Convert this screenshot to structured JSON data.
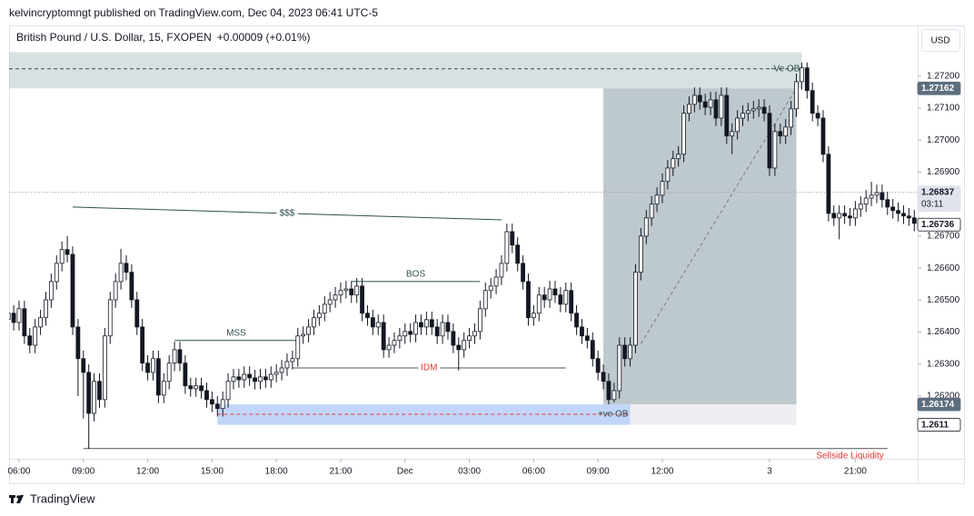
{
  "header": {
    "publisher": "kelvincryptomngt published on TradingView.com, Dec 04, 2023 06:41 UTC-5",
    "currency": "USD"
  },
  "footer": {
    "brand": "TradingView"
  },
  "chart_data": {
    "type": "candlestick",
    "title": "British Pound / U.S. Dollar, 15, FXOPEN",
    "change": "+0.00009 (+0.01%)",
    "color_up": "#ffffff",
    "color_down": "#131722",
    "color_outline": "#131722",
    "xlim": [
      0.14,
      169.63
    ],
    "ylim": [
      1.26004,
      1.27353
    ],
    "xticks": [
      {
        "value": 2,
        "label": "06:00"
      },
      {
        "value": 14,
        "label": "09:00"
      },
      {
        "value": 26,
        "label": "12:00"
      },
      {
        "value": 38,
        "label": "15:00"
      },
      {
        "value": 50,
        "label": "18:00"
      },
      {
        "value": 62,
        "label": "21:00"
      },
      {
        "value": 74,
        "label": "Dec"
      },
      {
        "value": 86,
        "label": "03:00"
      },
      {
        "value": 98,
        "label": "06:00"
      },
      {
        "value": 110,
        "label": "09:00"
      },
      {
        "value": 122,
        "label": "12:00"
      },
      {
        "value": 142,
        "label": "3"
      },
      {
        "value": 158,
        "label": "21:00"
      }
    ],
    "yticks": [
      {
        "value": 1.262,
        "label": "1.26200"
      },
      {
        "value": 1.263,
        "label": "1.26300"
      },
      {
        "value": 1.264,
        "label": "1.26400"
      },
      {
        "value": 1.265,
        "label": "1.26500"
      },
      {
        "value": 1.266,
        "label": "1.26600"
      },
      {
        "value": 1.267,
        "label": "1.26700"
      },
      {
        "value": 1.269,
        "label": "1.26900"
      },
      {
        "value": 1.27,
        "label": "1.27000"
      },
      {
        "value": 1.271,
        "label": "1.27100"
      },
      {
        "value": 1.272,
        "label": "1.27200"
      }
    ],
    "price_tags": [
      {
        "value": 1.27162,
        "color": "#5d6e7e",
        "text_color": "#ffffff"
      },
      {
        "value": 1.26837,
        "countdown": "03:11",
        "color": "#e0e3eb",
        "text_color": "#131722",
        "line": "dotted"
      },
      {
        "value": 1.26736,
        "color": "#ffffff",
        "text_color": "#131722"
      },
      {
        "value": 1.26174,
        "color": "#5d6e7e",
        "text_color": "#ffffff"
      },
      {
        "value": 1.2611,
        "color": "#ffffff",
        "text_color": "#131722"
      }
    ],
    "zones": [
      {
        "x": [
          0.14,
          148
        ],
        "y": [
          1.27162,
          1.27275
        ],
        "color": "rgba(178,196,198,0.5)"
      },
      {
        "x": [
          111,
          147
        ],
        "y": [
          1.26174,
          1.27162
        ],
        "color": "rgba(125,148,158,0.5)"
      },
      {
        "x": [
          39,
          116
        ],
        "y": [
          1.2611,
          1.26174
        ],
        "color": "rgba(120,165,245,0.45)"
      },
      {
        "x": [
          116,
          147
        ],
        "y": [
          1.2611,
          1.26174
        ],
        "color": "rgba(205,205,220,0.35)"
      }
    ],
    "annotations": [
      {
        "text": "$$$",
        "x": [
          12,
          92
        ],
        "y": [
          1.26791,
          1.26751
        ],
        "color": "#2e4f4f",
        "label_at": "inline"
      },
      {
        "text": "MSS",
        "x": [
          31,
          54
        ],
        "y": [
          1.26374,
          1.26374
        ],
        "color": "#2e4f4f",
        "label_at": "above"
      },
      {
        "text": "BOS",
        "x": [
          64,
          88
        ],
        "y": [
          1.26558,
          1.26558
        ],
        "color": "#2e4f4f",
        "label_at": "above"
      },
      {
        "text": "IDM",
        "x": [
          53,
          104
        ],
        "y": [
          1.26288,
          1.26288
        ],
        "color": "#e53935",
        "text_color": "#e53935",
        "line_color": "#555555",
        "label_at": "inline"
      },
      {
        "text": "Sellside Liquidity",
        "x": [
          14,
          164
        ],
        "y": [
          1.26036,
          1.26036
        ],
        "color": "#555555",
        "text_color": "#e53935",
        "label_at": "below-end"
      },
      {
        "text": "-Ve OB",
        "x": [
          0.14,
          148
        ],
        "y": [
          1.27223,
          1.27223
        ],
        "color": "#2e4f4f",
        "dash": true,
        "label_at": "end"
      },
      {
        "text": "+ve OB",
        "x": [
          39,
          116
        ],
        "y": [
          1.26143,
          1.26143
        ],
        "color": "#e53935",
        "text_color": "#2e4f4f",
        "dash": true,
        "label_at": "end"
      },
      {
        "x": [
          118,
          147
        ],
        "y": [
          1.26364,
          1.27162
        ],
        "color": "#787b86",
        "dash": true
      }
    ],
    "ohlc": [
      [
        1.2644,
        1.26484,
        1.26415,
        1.26459
      ],
      [
        1.26459,
        1.26484,
        1.26405,
        1.2643
      ],
      [
        1.2643,
        1.26498,
        1.26405,
        1.26473
      ],
      [
        1.26473,
        1.26498,
        1.26363,
        1.26388
      ],
      [
        1.26388,
        1.26413,
        1.26334,
        1.26359
      ],
      [
        1.26359,
        1.26441,
        1.26334,
        1.26416
      ],
      [
        1.26416,
        1.2647,
        1.26391,
        1.26445
      ],
      [
        1.26445,
        1.26526,
        1.2642,
        1.26501
      ],
      [
        1.26501,
        1.26583,
        1.26476,
        1.26558
      ],
      [
        1.26558,
        1.2664,
        1.26533,
        1.26615
      ],
      [
        1.26615,
        1.26683,
        1.2659,
        1.26658
      ],
      [
        1.26658,
        1.267,
        1.26618,
        1.26643
      ],
      [
        1.26643,
        1.26668,
        1.26391,
        1.26416
      ],
      [
        1.26416,
        1.26441,
        1.262,
        1.26317
      ],
      [
        1.26317,
        1.26342,
        1.2613,
        1.26274
      ],
      [
        1.26274,
        1.26299,
        1.26035,
        1.26146
      ],
      [
        1.26146,
        1.26271,
        1.26121,
        1.26246
      ],
      [
        1.26246,
        1.26271,
        1.26164,
        1.26189
      ],
      [
        1.26189,
        1.26413,
        1.26164,
        1.26388
      ],
      [
        1.26388,
        1.26526,
        1.26363,
        1.26501
      ],
      [
        1.26501,
        1.26583,
        1.26476,
        1.26558
      ],
      [
        1.26558,
        1.2666,
        1.26533,
        1.26615
      ],
      [
        1.26615,
        1.2664,
        1.26562,
        1.26587
      ],
      [
        1.26587,
        1.26612,
        1.26476,
        1.26501
      ],
      [
        1.26501,
        1.26526,
        1.26391,
        1.26416
      ],
      [
        1.26416,
        1.26441,
        1.26278,
        1.26303
      ],
      [
        1.26303,
        1.26328,
        1.26249,
        1.26274
      ],
      [
        1.26274,
        1.26342,
        1.26249,
        1.26317
      ],
      [
        1.26317,
        1.26342,
        1.26178,
        1.26203
      ],
      [
        1.26203,
        1.26271,
        1.26178,
        1.26246
      ],
      [
        1.26246,
        1.26328,
        1.26221,
        1.26303
      ],
      [
        1.26303,
        1.2637,
        1.26278,
        1.26345
      ],
      [
        1.26345,
        1.2637,
        1.26278,
        1.26303
      ],
      [
        1.26303,
        1.26328,
        1.26207,
        1.26232
      ],
      [
        1.26232,
        1.26257,
        1.26198,
        1.26223
      ],
      [
        1.26223,
        1.26257,
        1.26198,
        1.26232
      ],
      [
        1.26232,
        1.26257,
        1.26192,
        1.26217
      ],
      [
        1.26217,
        1.26242,
        1.26164,
        1.26189
      ],
      [
        1.26189,
        1.26214,
        1.2615,
        1.26175
      ],
      [
        1.26175,
        1.262,
        1.26136,
        1.26161
      ],
      [
        1.26161,
        1.26214,
        1.26136,
        1.26189
      ],
      [
        1.26189,
        1.26271,
        1.26164,
        1.26246
      ],
      [
        1.26246,
        1.26285,
        1.26221,
        1.2626
      ],
      [
        1.2626,
        1.26285,
        1.26226,
        1.26251
      ],
      [
        1.26251,
        1.26293,
        1.26226,
        1.26268
      ],
      [
        1.26268,
        1.26293,
        1.26232,
        1.26257
      ],
      [
        1.26257,
        1.26282,
        1.26221,
        1.26246
      ],
      [
        1.26246,
        1.26285,
        1.26221,
        1.2626
      ],
      [
        1.2626,
        1.26285,
        1.26226,
        1.26251
      ],
      [
        1.26251,
        1.26293,
        1.26226,
        1.26268
      ],
      [
        1.26268,
        1.26299,
        1.26243,
        1.26274
      ],
      [
        1.26274,
        1.26313,
        1.26249,
        1.26288
      ],
      [
        1.26288,
        1.26333,
        1.26263,
        1.26308
      ],
      [
        1.26308,
        1.26342,
        1.26283,
        1.26317
      ],
      [
        1.26317,
        1.26413,
        1.26292,
        1.26388
      ],
      [
        1.26388,
        1.26418,
        1.26363,
        1.26393
      ],
      [
        1.26393,
        1.26441,
        1.26368,
        1.26416
      ],
      [
        1.26416,
        1.2647,
        1.26391,
        1.26445
      ],
      [
        1.26445,
        1.26484,
        1.2642,
        1.26459
      ],
      [
        1.26459,
        1.26512,
        1.26434,
        1.26487
      ],
      [
        1.26487,
        1.26526,
        1.26462,
        1.26501
      ],
      [
        1.26501,
        1.26541,
        1.26476,
        1.26516
      ],
      [
        1.26516,
        1.26555,
        1.26491,
        1.2653
      ],
      [
        1.2653,
        1.2656,
        1.26505,
        1.26535
      ],
      [
        1.26535,
        1.2656,
        1.26491,
        1.26516
      ],
      [
        1.26516,
        1.26569,
        1.26491,
        1.26544
      ],
      [
        1.26544,
        1.26569,
        1.26434,
        1.26459
      ],
      [
        1.26459,
        1.26484,
        1.2642,
        1.26445
      ],
      [
        1.26445,
        1.2647,
        1.26391,
        1.26416
      ],
      [
        1.26416,
        1.26455,
        1.26391,
        1.2643
      ],
      [
        1.2643,
        1.26455,
        1.2632,
        1.26345
      ],
      [
        1.26345,
        1.26384,
        1.2632,
        1.26359
      ],
      [
        1.26359,
        1.26399,
        1.26334,
        1.26374
      ],
      [
        1.26374,
        1.26413,
        1.26349,
        1.26388
      ],
      [
        1.26388,
        1.26427,
        1.26363,
        1.26402
      ],
      [
        1.26402,
        1.26427,
        1.26368,
        1.26393
      ],
      [
        1.26393,
        1.26455,
        1.26368,
        1.2643
      ],
      [
        1.2643,
        1.26455,
        1.26391,
        1.26416
      ],
      [
        1.26416,
        1.26464,
        1.26391,
        1.26439
      ],
      [
        1.26439,
        1.26464,
        1.26391,
        1.26416
      ],
      [
        1.26416,
        1.26441,
        1.26363,
        1.26388
      ],
      [
        1.26388,
        1.26455,
        1.26363,
        1.2643
      ],
      [
        1.2643,
        1.26455,
        1.26377,
        1.26402
      ],
      [
        1.26402,
        1.26427,
        1.26334,
        1.26359
      ],
      [
        1.26359,
        1.26384,
        1.2628,
        1.26345
      ],
      [
        1.26345,
        1.26399,
        1.2632,
        1.26374
      ],
      [
        1.26374,
        1.26413,
        1.26349,
        1.26388
      ],
      [
        1.26388,
        1.26427,
        1.26363,
        1.26402
      ],
      [
        1.26402,
        1.26498,
        1.26377,
        1.26473
      ],
      [
        1.26473,
        1.26555,
        1.26448,
        1.2653
      ],
      [
        1.2653,
        1.26569,
        1.26505,
        1.26544
      ],
      [
        1.26544,
        1.26597,
        1.26519,
        1.26572
      ],
      [
        1.26572,
        1.2664,
        1.26547,
        1.26615
      ],
      [
        1.26615,
        1.26739,
        1.2659,
        1.26714
      ],
      [
        1.26714,
        1.26739,
        1.26647,
        1.26672
      ],
      [
        1.26672,
        1.26697,
        1.2659,
        1.26615
      ],
      [
        1.26615,
        1.2664,
        1.26533,
        1.26558
      ],
      [
        1.26558,
        1.26583,
        1.2642,
        1.26445
      ],
      [
        1.26445,
        1.26484,
        1.2642,
        1.26459
      ],
      [
        1.26459,
        1.26541,
        1.26434,
        1.26516
      ],
      [
        1.26516,
        1.26541,
        1.26476,
        1.26501
      ],
      [
        1.26501,
        1.2656,
        1.26476,
        1.26535
      ],
      [
        1.26535,
        1.2656,
        1.26491,
        1.26516
      ],
      [
        1.26516,
        1.26541,
        1.26462,
        1.26487
      ],
      [
        1.26487,
        1.26555,
        1.26462,
        1.2653
      ],
      [
        1.2653,
        1.26555,
        1.26434,
        1.26459
      ],
      [
        1.26459,
        1.26484,
        1.26391,
        1.26416
      ],
      [
        1.26416,
        1.26441,
        1.26363,
        1.26388
      ],
      [
        1.26388,
        1.26413,
        1.26349,
        1.26374
      ],
      [
        1.26374,
        1.26399,
        1.26292,
        1.26317
      ],
      [
        1.26317,
        1.26342,
        1.26249,
        1.26274
      ],
      [
        1.26274,
        1.26299,
        1.26221,
        1.26246
      ],
      [
        1.26246,
        1.26271,
        1.26174,
        1.26189
      ],
      [
        1.26189,
        1.26242,
        1.2618,
        1.26217
      ],
      [
        1.26217,
        1.26384,
        1.26192,
        1.26359
      ],
      [
        1.26359,
        1.26384,
        1.26292,
        1.26317
      ],
      [
        1.26317,
        1.26384,
        1.26292,
        1.26359
      ],
      [
        1.26359,
        1.26612,
        1.26334,
        1.26587
      ],
      [
        1.26587,
        1.26725,
        1.26562,
        1.267
      ],
      [
        1.267,
        1.26782,
        1.26675,
        1.26757
      ],
      [
        1.26757,
        1.26825,
        1.26732,
        1.268
      ],
      [
        1.268,
        1.26853,
        1.26775,
        1.26828
      ],
      [
        1.26828,
        1.26896,
        1.26803,
        1.26871
      ],
      [
        1.26871,
        1.26938,
        1.26846,
        1.26913
      ],
      [
        1.26913,
        1.26967,
        1.26888,
        1.26942
      ],
      [
        1.26942,
        1.26981,
        1.26917,
        1.26956
      ],
      [
        1.26956,
        1.27109,
        1.26931,
        1.27084
      ],
      [
        1.27084,
        1.27137,
        1.27059,
        1.27112
      ],
      [
        1.27112,
        1.27165,
        1.27087,
        1.2714
      ],
      [
        1.2714,
        1.27165,
        1.27095,
        1.2712
      ],
      [
        1.2712,
        1.27145,
        1.27078,
        1.27103
      ],
      [
        1.27103,
        1.27151,
        1.27078,
        1.27126
      ],
      [
        1.27126,
        1.27151,
        1.27044,
        1.27069
      ],
      [
        1.27069,
        1.27165,
        1.27044,
        1.2714
      ],
      [
        1.2714,
        1.27165,
        1.26988,
        1.27013
      ],
      [
        1.27013,
        1.27052,
        1.26956,
        1.27027
      ],
      [
        1.27027,
        1.27094,
        1.27002,
        1.27069
      ],
      [
        1.27069,
        1.27109,
        1.27044,
        1.27084
      ],
      [
        1.27084,
        1.27117,
        1.27059,
        1.27092
      ],
      [
        1.27092,
        1.27123,
        1.27067,
        1.27098
      ],
      [
        1.27098,
        1.27128,
        1.27073,
        1.27103
      ],
      [
        1.27103,
        1.27128,
        1.27059,
        1.27084
      ],
      [
        1.27084,
        1.27109,
        1.26888,
        1.26913
      ],
      [
        1.26913,
        1.27052,
        1.26888,
        1.27027
      ],
      [
        1.27027,
        1.27052,
        1.26988,
        1.27013
      ],
      [
        1.27013,
        1.27066,
        1.26988,
        1.27041
      ],
      [
        1.27041,
        1.27123,
        1.27016,
        1.27098
      ],
      [
        1.27098,
        1.27208,
        1.27073,
        1.27183
      ],
      [
        1.27183,
        1.27243,
        1.27158,
        1.27226
      ],
      [
        1.27226,
        1.27243,
        1.2713,
        1.27155
      ],
      [
        1.27155,
        1.2718,
        1.27059,
        1.27084
      ],
      [
        1.27084,
        1.27109,
        1.27044,
        1.27069
      ],
      [
        1.27069,
        1.27094,
        1.26931,
        1.26956
      ],
      [
        1.26956,
        1.26981,
        1.26746,
        1.26771
      ],
      [
        1.26771,
        1.26796,
        1.26732,
        1.26757
      ],
      [
        1.26757,
        1.26796,
        1.2669,
        1.26771
      ],
      [
        1.26771,
        1.26796,
        1.26738,
        1.26763
      ],
      [
        1.26763,
        1.26788,
        1.26732,
        1.26757
      ],
      [
        1.26757,
        1.2681,
        1.26732,
        1.26785
      ],
      [
        1.26785,
        1.26825,
        1.2676,
        1.268
      ],
      [
        1.268,
        1.26844,
        1.26775,
        1.26819
      ],
      [
        1.26819,
        1.2687,
        1.26794,
        1.26828
      ],
      [
        1.26828,
        1.26861,
        1.26803,
        1.26836
      ],
      [
        1.26836,
        1.26861,
        1.26789,
        1.26814
      ],
      [
        1.26814,
        1.26839,
        1.26766,
        1.26791
      ],
      [
        1.26791,
        1.26816,
        1.26755,
        1.2678
      ],
      [
        1.2678,
        1.26805,
        1.26746,
        1.26771
      ],
      [
        1.26771,
        1.26796,
        1.26738,
        1.26763
      ],
      [
        1.26763,
        1.26788,
        1.26732,
        1.26757
      ],
      [
        1.26757,
        1.26782,
        1.26715,
        1.2674
      ]
    ]
  }
}
